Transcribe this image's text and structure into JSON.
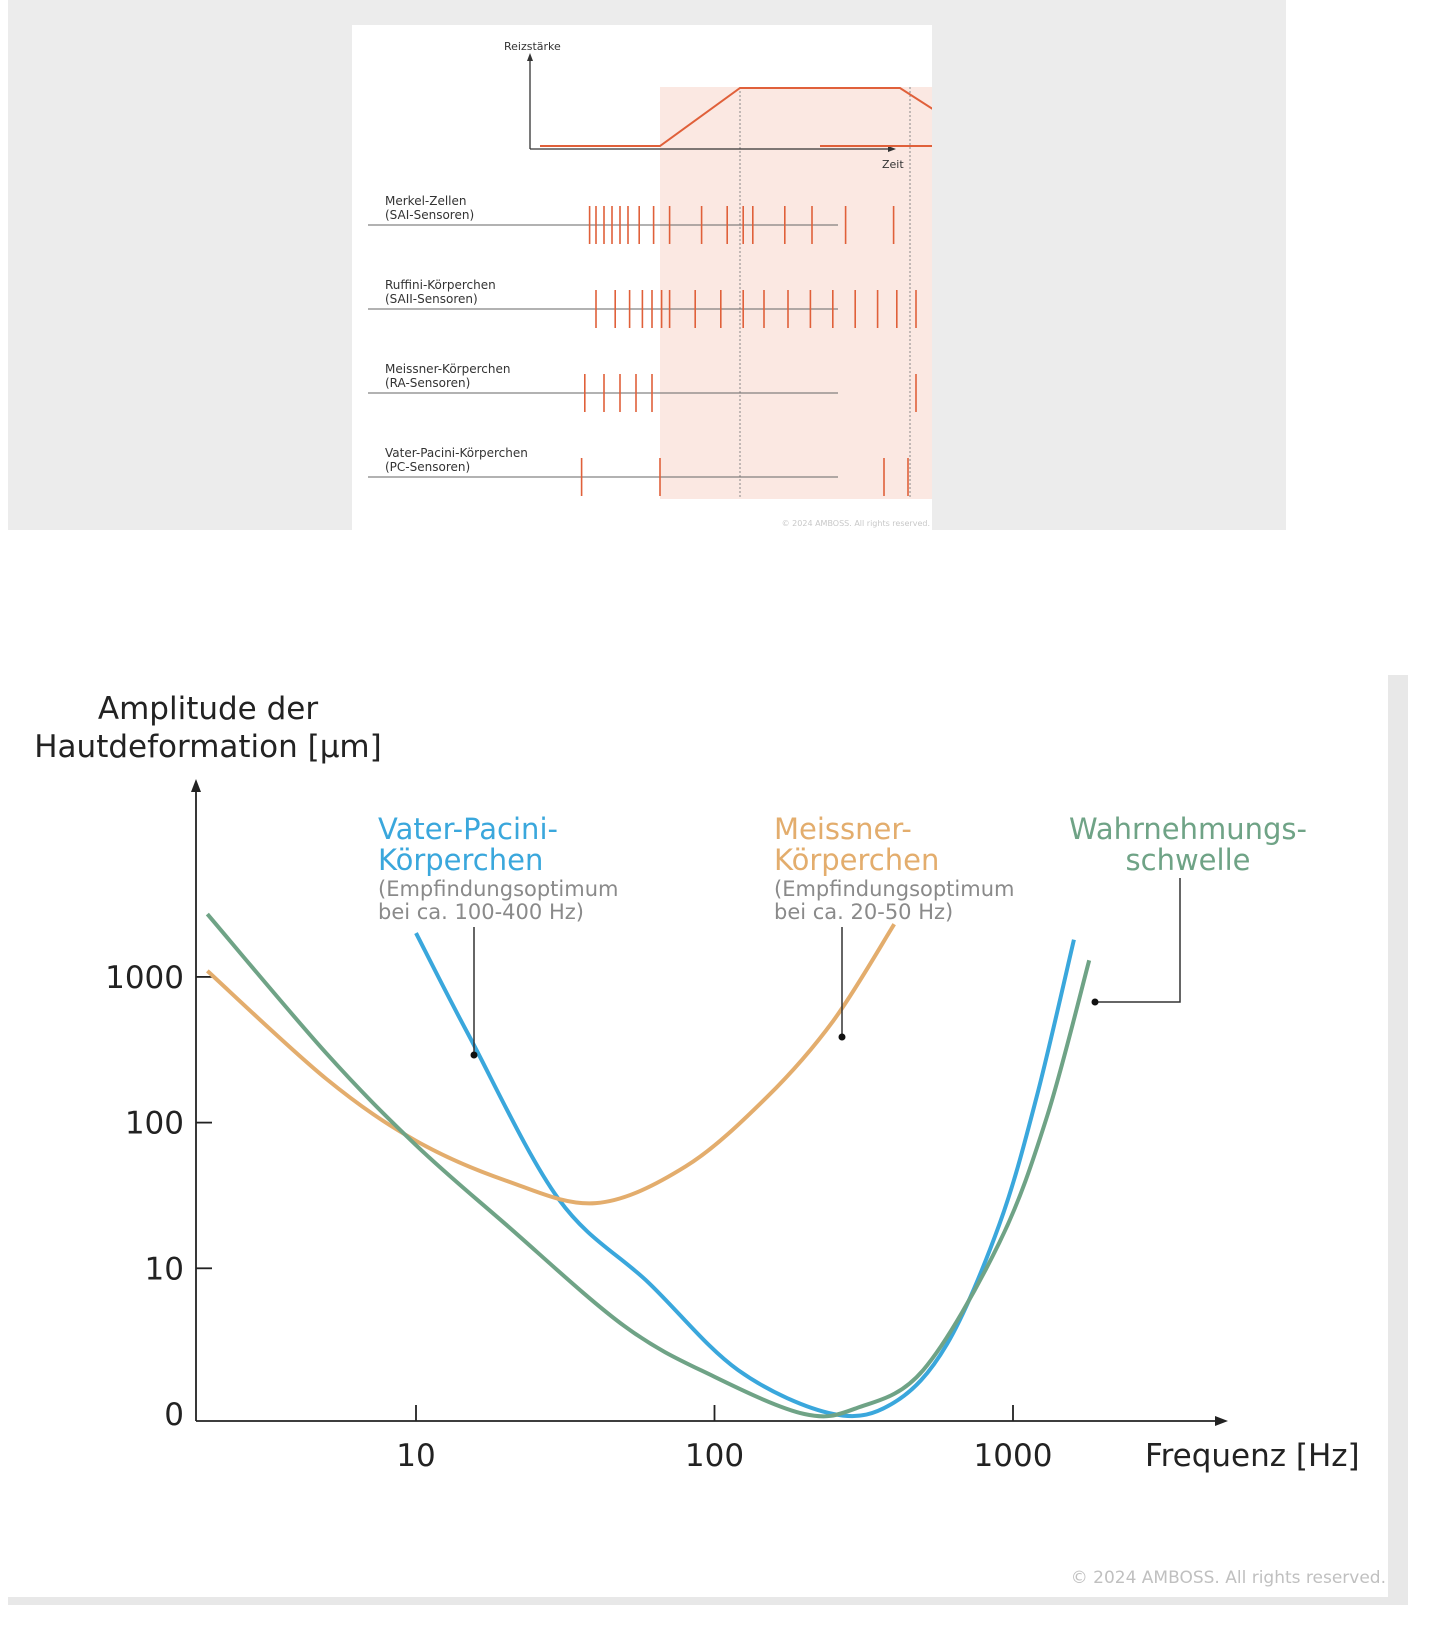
{
  "chart_data": [
    {
      "type": "line",
      "xlabel": "Zeit",
      "ylabel": "Reizstärke",
      "stimulus": {
        "x": [
          0,
          0.5,
          1,
          1.5,
          2,
          2.5,
          3
        ],
        "y": [
          0,
          0,
          1,
          1,
          1,
          0,
          0
        ]
      },
      "raster": [
        {
          "name": "Merkel-Zellen",
          "type": "SAI-Sensoren",
          "label": "Merkel-Zellen",
          "sub": "(SAI-Sensoren)",
          "spikes": [
            0.06,
            0.1,
            0.15,
            0.2,
            0.25,
            0.3,
            0.37,
            0.46,
            0.56,
            0.76,
            0.92,
            1.02,
            1.08,
            1.28,
            1.45,
            1.66,
            1.96
          ]
        },
        {
          "name": "Ruffini-Körperchen",
          "type": "SAII-Sensoren",
          "label": "Ruffini-Körperchen",
          "sub": "(SAII-Sensoren)",
          "spikes": [
            0.1,
            0.22,
            0.31,
            0.39,
            0.45,
            0.51,
            0.56,
            0.72,
            0.88,
            1.02,
            1.15,
            1.3,
            1.44,
            1.58,
            1.72,
            1.86,
            1.98,
            2.1
          ]
        },
        {
          "name": "Meissner-Körperchen",
          "type": "RA-Sensoren",
          "label": "Meissner-Körperchen",
          "sub": "(RA-Sensoren)",
          "spikes": [
            0.03,
            0.15,
            0.25,
            0.35,
            0.45,
            2.1
          ]
        },
        {
          "name": "Vater-Pacini-Körperchen",
          "type": "PC-Sensoren",
          "label": "Vater-Pacini-Körperchen",
          "sub": "(PC-Sensoren)",
          "spikes": [
            0.01,
            0.5,
            1.9,
            2.05
          ]
        }
      ],
      "copyright": "© 2024 AMBOSS. All rights reserved."
    },
    {
      "type": "line",
      "xlabel": "Frequenz [Hz]",
      "ylabel_line1": "Amplitude der",
      "ylabel_line2": "Hautdeformation [μm]",
      "x_scale": "log",
      "x_ticks": [
        10,
        100,
        1000
      ],
      "x_tick_labels": [
        "10",
        "100",
        "1000"
      ],
      "y_ticks": [
        0,
        10,
        100,
        1000
      ],
      "y_tick_labels": [
        "0",
        "10",
        "100",
        "1000"
      ],
      "series": [
        {
          "name": "Vater-Pacini-Körperchen",
          "color": "#3aa7dc",
          "x": [
            10,
            15,
            30,
            60,
            120,
            250,
            400,
            600,
            900,
            1200,
            1600
          ],
          "y": [
            2000,
            400,
            30,
            8,
            2,
            1,
            1.2,
            3,
            20,
            150,
            1800
          ]
        },
        {
          "name": "Meissner-Körperchen",
          "color": "#e3ad6d",
          "x": [
            2,
            5,
            10,
            20,
            40,
            80,
            150,
            250,
            400
          ],
          "y": [
            1100,
            200,
            75,
            40,
            28,
            50,
            150,
            500,
            2300
          ]
        },
        {
          "name": "Wahrnehmungsschwelle",
          "color": "#6fa386",
          "x": [
            2,
            5,
            10,
            20,
            50,
            100,
            200,
            300,
            500,
            900,
            1300,
            1800
          ],
          "y": [
            2700,
            300,
            70,
            20,
            4,
            1.8,
            1,
            1.1,
            2,
            15,
            110,
            1300
          ]
        }
      ],
      "annotations": {
        "pacini_line1": "Vater-Pacini-",
        "pacini_line2": "Körperchen",
        "pacini_note1": "(Empfindungsoptimum",
        "pacini_note2": "bei ca. 100-400 Hz)",
        "meissner_line1": "Meissner-",
        "meissner_line2": "Körperchen",
        "meissner_note1": "(Empfindungsoptimum",
        "meissner_note2": "bei ca. 20-50 Hz)",
        "threshold_line1": "Wahrnehmungs-",
        "threshold_line2": "schwelle"
      },
      "copyright": "© 2024 AMBOSS. All rights reserved."
    }
  ]
}
